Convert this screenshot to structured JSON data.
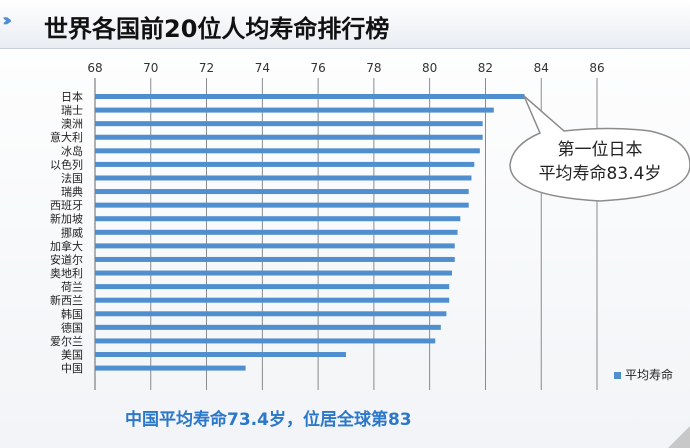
{
  "title": "世界各国前20位人均寿命排行榜",
  "title_arrows": "›››",
  "footer": "中国平均寿命73.4岁，位居全球第83",
  "callout_lines": [
    "第一位日本",
    "平均寿命83.4岁"
  ],
  "colors": {
    "bar": "#4f8fd0",
    "arrows": "#4f8fd0",
    "footer": "#2b77c9",
    "grid": "#7f7f7f"
  },
  "chart_data": {
    "type": "bar",
    "orientation": "horizontal",
    "categories": [
      "日本",
      "瑞士",
      "澳洲",
      "意大利",
      "冰岛",
      "以色列",
      "法国",
      "瑞典",
      "西班牙",
      "新加坡",
      "挪威",
      "加拿大",
      "安道尔",
      "奥地利",
      "荷兰",
      "新西兰",
      "韩国",
      "德国",
      "爱尔兰",
      "美国",
      "中国"
    ],
    "series": [
      {
        "name": "平均寿命",
        "values": [
          83.4,
          82.3,
          81.9,
          81.9,
          81.8,
          81.6,
          81.5,
          81.4,
          81.4,
          81.1,
          81.0,
          80.9,
          80.9,
          80.8,
          80.7,
          80.7,
          80.6,
          80.4,
          80.2,
          77.0,
          73.4
        ]
      }
    ],
    "xlim": [
      68,
      86
    ],
    "xticks": [
      68,
      70,
      72,
      74,
      76,
      78,
      80,
      82,
      84,
      86
    ],
    "grid": true,
    "x_axis_position": "top",
    "legend_position": "bottom-right"
  }
}
